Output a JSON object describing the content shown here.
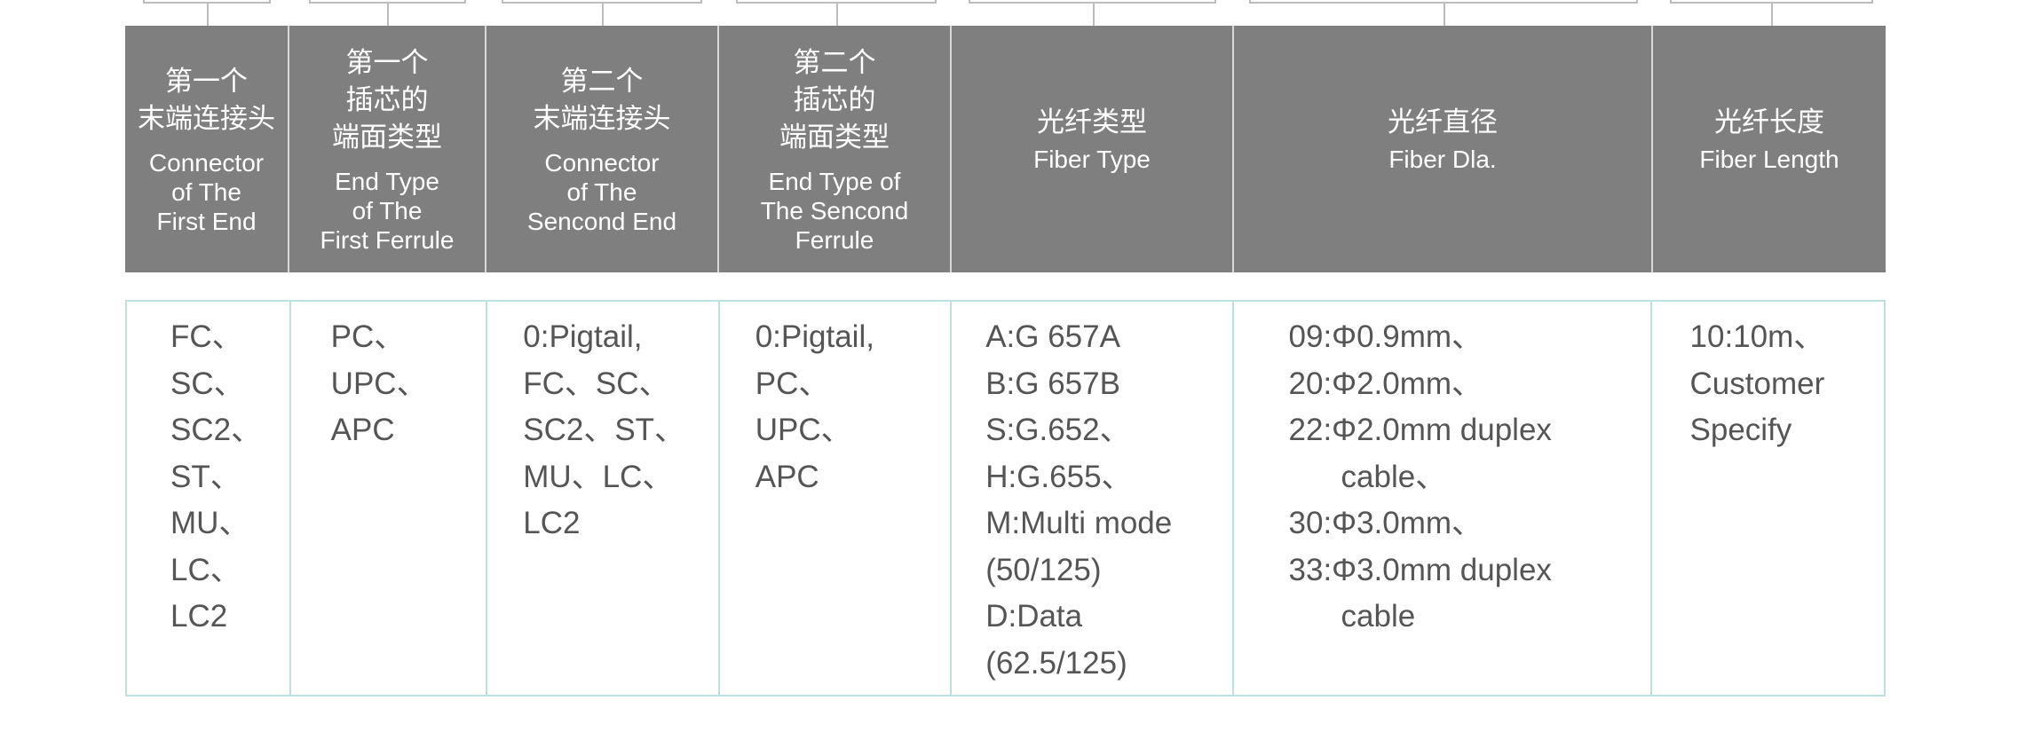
{
  "header": [
    {
      "zh": "第一个\n末端连接头",
      "en": "Connector\nof The\nFirst End"
    },
    {
      "zh": "第一个\n插芯的\n端面类型",
      "en": "End Type\nof The\nFirst Ferrule"
    },
    {
      "zh": "第二个\n末端连接头",
      "en": "Connector\nof The\nSencond End"
    },
    {
      "zh": "第二个\n插芯的\n端面类型",
      "en": "End Type of\nThe Sencond\nFerrule"
    },
    {
      "zh": "光纤类型",
      "en": "Fiber Type"
    },
    {
      "zh": "光纤直径",
      "en": "Fiber Dla."
    },
    {
      "zh": "光纤长度",
      "en": "Fiber Length"
    }
  ],
  "body": [
    [
      "FC、",
      "SC、",
      "SC2、",
      "ST、",
      "MU、",
      "LC、",
      "LC2"
    ],
    [
      "PC、",
      "UPC、",
      "APC"
    ],
    [
      "0:Pigtail,",
      "FC、SC、",
      "SC2、ST、",
      "MU、LC、",
      "LC2"
    ],
    [
      "0:Pigtail,",
      "PC、",
      "UPC、",
      "APC"
    ],
    [
      "A:G 657A",
      "B:G 657B",
      "S:G.652、",
      "H:G.655、",
      "M:Multi mode",
      "(50/125)",
      "D:Data",
      "(62.5/125)"
    ],
    [
      "09:Φ0.9mm、",
      "20:Φ2.0mm、",
      "22:Φ2.0mm duplex",
      "cable、",
      "30:Φ3.0mm、",
      "33:Φ3.0mm duplex",
      "cable"
    ],
    [
      "10:10m、",
      "Customer",
      "Specify"
    ]
  ],
  "colors": {
    "header_bg": "#7f7f7f",
    "header_text": "#ffffff",
    "body_border": "#bfe0e0",
    "body_text": "#555555"
  }
}
